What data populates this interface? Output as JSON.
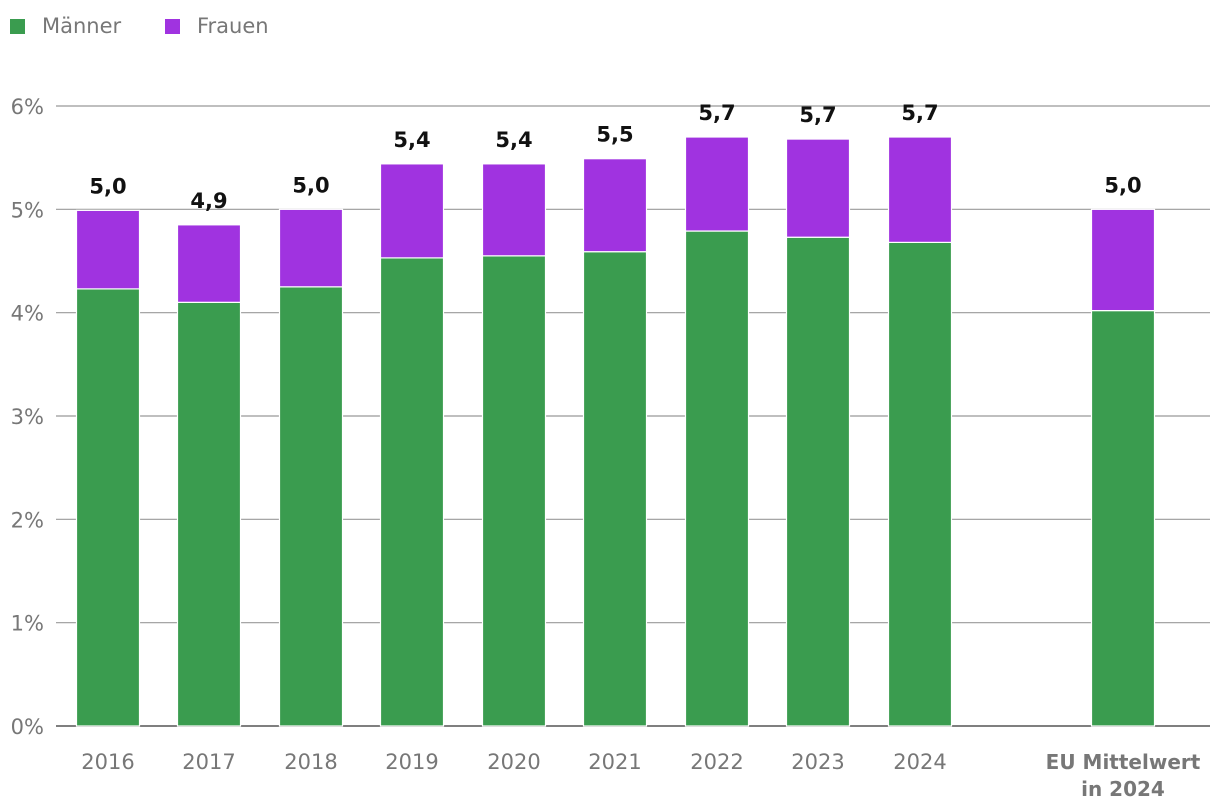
{
  "chart_data": {
    "type": "bar",
    "stacked": true,
    "categories": [
      "2016",
      "2017",
      "2018",
      "2019",
      "2020",
      "2021",
      "2022",
      "2023",
      "2024",
      "EU Mittelwert in 2024"
    ],
    "category_lines": [
      [
        "2016"
      ],
      [
        "2017"
      ],
      [
        "2018"
      ],
      [
        "2019"
      ],
      [
        "2020"
      ],
      [
        "2021"
      ],
      [
        "2022"
      ],
      [
        "2023"
      ],
      [
        "2024"
      ],
      [
        "EU Mittelwert",
        "in 2024"
      ]
    ],
    "series": [
      {
        "name": "Männer",
        "color": "#3a9c4f",
        "values": [
          4.23,
          4.1,
          4.25,
          4.53,
          4.55,
          4.59,
          4.79,
          4.73,
          4.68,
          4.02
        ]
      },
      {
        "name": "Frauen",
        "color": "#a033e0",
        "values": [
          0.76,
          0.75,
          0.75,
          0.91,
          0.89,
          0.9,
          0.91,
          0.95,
          1.02,
          0.98
        ]
      }
    ],
    "totals_labels": [
      "5,0",
      "4,9",
      "5,0",
      "5,4",
      "5,4",
      "5,5",
      "5,7",
      "5,7",
      "5,7",
      "5,0"
    ],
    "y_ticks": [
      "0%",
      "1%",
      "2%",
      "3%",
      "4%",
      "5%",
      "6%"
    ],
    "ylim": [
      0,
      6
    ],
    "title": "",
    "xlabel": "",
    "ylabel": "",
    "grid": true,
    "legend_position": "top-left"
  }
}
